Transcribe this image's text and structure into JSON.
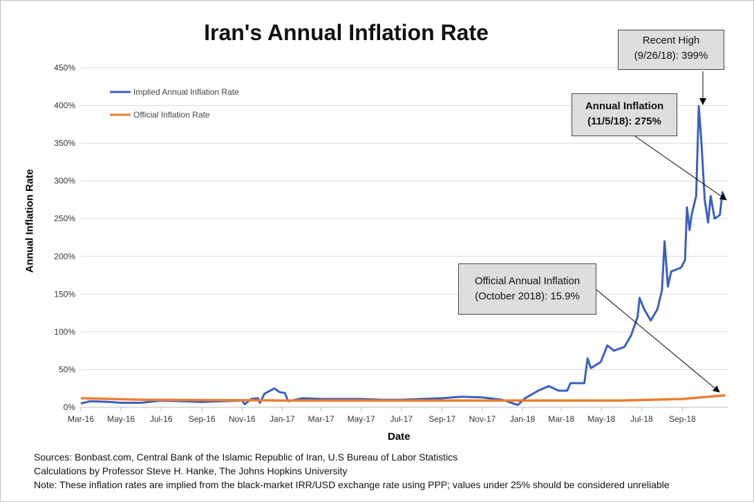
{
  "chart_data": {
    "type": "line",
    "title": "Iran's Annual Inflation Rate",
    "xlabel": "Date",
    "ylabel": "Annual Inflation Rate",
    "ylim": [
      0,
      450
    ],
    "yticks": [
      "0%",
      "50%",
      "100%",
      "150%",
      "200%",
      "250%",
      "300%",
      "350%",
      "400%",
      "450%"
    ],
    "xticks": [
      "Mar-16",
      "May-16",
      "Jul-16",
      "Sep-16",
      "Nov-16",
      "Jan-17",
      "Mar-17",
      "May-17",
      "Jul-17",
      "Sep-17",
      "Nov-17",
      "Jan-18",
      "Mar-18",
      "May-18",
      "Jul-18",
      "Sep-18"
    ],
    "xtick_dates": [
      "2016-03-01",
      "2016-05-01",
      "2016-07-01",
      "2016-09-01",
      "2016-11-01",
      "2017-01-01",
      "2017-03-01",
      "2017-05-01",
      "2017-07-01",
      "2017-09-01",
      "2017-11-01",
      "2018-01-01",
      "2018-03-01",
      "2018-05-01",
      "2018-07-01",
      "2018-09-01"
    ],
    "xlim": [
      "2016-03-01",
      "2018-11-10"
    ],
    "grid": "horizontal",
    "legend_placement": "top-left",
    "series": [
      {
        "name": "Implied Annual Inflation Rate",
        "color": "#3a5fc0",
        "points": [
          [
            "2016-03-01",
            5
          ],
          [
            "2016-03-15",
            8
          ],
          [
            "2016-04-15",
            7
          ],
          [
            "2016-05-01",
            6
          ],
          [
            "2016-06-01",
            6
          ],
          [
            "2016-07-01",
            9
          ],
          [
            "2016-08-01",
            8
          ],
          [
            "2016-09-01",
            7
          ],
          [
            "2016-10-01",
            8
          ],
          [
            "2016-11-01",
            9
          ],
          [
            "2016-11-05",
            4
          ],
          [
            "2016-11-15",
            11
          ],
          [
            "2016-11-25",
            12
          ],
          [
            "2016-11-28",
            6
          ],
          [
            "2016-12-05",
            18
          ],
          [
            "2016-12-20",
            25
          ],
          [
            "2016-12-28",
            20
          ],
          [
            "2017-01-05",
            19
          ],
          [
            "2017-01-10",
            8
          ],
          [
            "2017-02-01",
            12
          ],
          [
            "2017-03-01",
            11
          ],
          [
            "2017-04-01",
            11
          ],
          [
            "2017-05-01",
            11
          ],
          [
            "2017-06-01",
            10
          ],
          [
            "2017-07-01",
            10
          ],
          [
            "2017-08-01",
            11
          ],
          [
            "2017-09-01",
            12
          ],
          [
            "2017-10-01",
            14
          ],
          [
            "2017-11-01",
            13
          ],
          [
            "2017-12-01",
            10
          ],
          [
            "2017-12-25",
            3
          ],
          [
            "2018-01-05",
            12
          ],
          [
            "2018-01-25",
            22
          ],
          [
            "2018-02-10",
            28
          ],
          [
            "2018-02-25",
            22
          ],
          [
            "2018-03-10",
            22
          ],
          [
            "2018-03-15",
            32
          ],
          [
            "2018-04-05",
            32
          ],
          [
            "2018-04-10",
            65
          ],
          [
            "2018-04-15",
            52
          ],
          [
            "2018-04-30",
            60
          ],
          [
            "2018-05-10",
            82
          ],
          [
            "2018-05-20",
            75
          ],
          [
            "2018-06-05",
            80
          ],
          [
            "2018-06-15",
            95
          ],
          [
            "2018-06-25",
            120
          ],
          [
            "2018-06-28",
            145
          ],
          [
            "2018-07-05",
            130
          ],
          [
            "2018-07-15",
            115
          ],
          [
            "2018-07-25",
            130
          ],
          [
            "2018-08-01",
            155
          ],
          [
            "2018-08-05",
            220
          ],
          [
            "2018-08-10",
            160
          ],
          [
            "2018-08-15",
            180
          ],
          [
            "2018-08-30",
            185
          ],
          [
            "2018-09-05",
            195
          ],
          [
            "2018-09-08",
            265
          ],
          [
            "2018-09-12",
            235
          ],
          [
            "2018-09-15",
            255
          ],
          [
            "2018-09-22",
            280
          ],
          [
            "2018-09-26",
            399
          ],
          [
            "2018-09-30",
            350
          ],
          [
            "2018-10-05",
            275
          ],
          [
            "2018-10-10",
            245
          ],
          [
            "2018-10-14",
            280
          ],
          [
            "2018-10-20",
            250
          ],
          [
            "2018-10-28",
            255
          ],
          [
            "2018-11-01",
            285
          ],
          [
            "2018-11-05",
            275
          ]
        ]
      },
      {
        "name": "Official Inflation Rate",
        "color": "#ed7d31",
        "points": [
          [
            "2016-03-01",
            12
          ],
          [
            "2016-06-01",
            10
          ],
          [
            "2017-01-01",
            9
          ],
          [
            "2018-06-01",
            9
          ],
          [
            "2018-09-01",
            11
          ],
          [
            "2018-11-05",
            15.9
          ]
        ]
      }
    ],
    "annotations": [
      {
        "line1": "Recent High",
        "line2": "(9/26/18): 399%"
      },
      {
        "line1": "Annual Inflation",
        "line2": "(11/5/18): 275%"
      },
      {
        "line1": "Official Annual Inflation",
        "line2": "(October 2018): 15.9%"
      }
    ]
  },
  "notes": [
    "Sources: Bonbast.com, Central Bank of the Islamic Republic of Iran, U.S Bureau of Labor Statistics",
    "Calculations by Professor Steve H. Hanke, The Johns Hopkins University",
    "Note: These inflation rates are implied from the black-market IRR/USD exchange rate using PPP; values under 25% should be considered unreliable"
  ]
}
